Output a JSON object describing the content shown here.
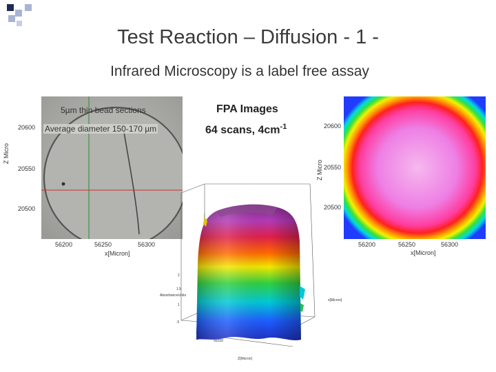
{
  "header": {
    "title": "Test Reaction – Diffusion - 1 -",
    "subtitle": "Infrared Microscopy is a label free assay"
  },
  "micrograph": {
    "caption_1": "5µm thin bead sections",
    "caption_2": "Average diameter 150-170 µm",
    "y_axis_label": "Z Micro",
    "x_axis_label": "x[Micron]",
    "y_ticks": [
      "20600",
      "20550",
      "20500"
    ],
    "x_ticks": [
      "56200",
      "56250",
      "56300"
    ]
  },
  "fpa": {
    "title": "FPA Images",
    "scans": "64 scans, 4cm",
    "scans_exp": "-1"
  },
  "heatmap": {
    "y_axis_label": "Z Micro",
    "x_axis_label": "x[Micron]",
    "y_ticks": [
      "20600",
      "20550",
      "20500"
    ],
    "x_ticks": [
      "56200",
      "56250",
      "56300"
    ]
  },
  "surface3d": {
    "z_axis_label": "AbsorbanceUnits",
    "x_axis_label": "x[Micron]",
    "depth_axis_label": "Z[Micron]",
    "z_ticks": [
      "2",
      "1.5",
      "1",
      ".5"
    ],
    "x_tick": "56250"
  },
  "colors": {
    "deco_dark": "#1f2a57",
    "deco_light": "#a9b3d6",
    "grid_red": "#c83030",
    "grid_green": "#2f8a2f"
  }
}
